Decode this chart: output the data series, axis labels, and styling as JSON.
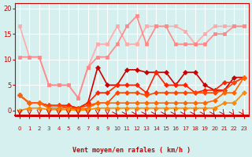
{
  "xlabel": "Vent moyen/en rafales ( km/h )",
  "bg_color": "#d6f0f0",
  "grid_color": "#ffffff",
  "x_ticks": [
    0,
    1,
    2,
    3,
    4,
    5,
    6,
    7,
    8,
    9,
    10,
    11,
    12,
    13,
    14,
    15,
    16,
    17,
    18,
    19,
    20,
    21,
    22,
    23
  ],
  "ylim": [
    -1,
    21
  ],
  "yticks": [
    0,
    5,
    10,
    15,
    20
  ],
  "series": [
    {
      "x": [
        0,
        1,
        2,
        3,
        4,
        5,
        6,
        7,
        8,
        9,
        10,
        11,
        12,
        13,
        14,
        15,
        16,
        17,
        18,
        19,
        20,
        21,
        22,
        23
      ],
      "y": [
        16.5,
        10.5,
        10.5,
        5.0,
        5.0,
        5.0,
        2.5,
        8.5,
        13.0,
        13.0,
        16.5,
        13.0,
        13.0,
        16.5,
        16.5,
        16.5,
        16.5,
        15.5,
        13.0,
        15.0,
        16.5,
        16.5,
        16.5,
        16.5
      ],
      "color": "#ffaaaa",
      "lw": 1.2,
      "marker": "s",
      "ms": 3
    },
    {
      "x": [
        0,
        1,
        2,
        3,
        4,
        5,
        6,
        7,
        8,
        9,
        10,
        11,
        12,
        13,
        14,
        15,
        16,
        17,
        18,
        19,
        20,
        21,
        22,
        23
      ],
      "y": [
        10.5,
        10.5,
        10.5,
        5.0,
        5.0,
        5.0,
        2.5,
        8.5,
        10.5,
        10.5,
        13.0,
        16.5,
        18.5,
        13.0,
        16.5,
        16.5,
        13.0,
        13.0,
        13.0,
        13.0,
        15.0,
        15.0,
        16.5,
        16.5
      ],
      "color": "#ff8888",
      "lw": 1.2,
      "marker": "s",
      "ms": 3
    },
    {
      "x": [
        0,
        1,
        2,
        3,
        4,
        5,
        6,
        7,
        8,
        9,
        10,
        11,
        12,
        13,
        14,
        15,
        16,
        17,
        18,
        19,
        20,
        21,
        22,
        23
      ],
      "y": [
        3.0,
        1.5,
        1.5,
        1.0,
        1.0,
        1.0,
        0.5,
        1.5,
        8.5,
        5.0,
        5.0,
        8.0,
        8.0,
        7.5,
        7.5,
        7.5,
        5.0,
        7.5,
        7.5,
        5.0,
        4.0,
        4.0,
        6.5,
        6.5
      ],
      "color": "#cc0000",
      "lw": 1.2,
      "marker": "D",
      "ms": 3
    },
    {
      "x": [
        0,
        1,
        2,
        3,
        4,
        5,
        6,
        7,
        8,
        9,
        10,
        11,
        12,
        13,
        14,
        15,
        16,
        17,
        18,
        19,
        20,
        21,
        22,
        23
      ],
      "y": [
        3.0,
        1.5,
        1.5,
        1.0,
        1.0,
        1.0,
        0.5,
        1.5,
        3.5,
        3.5,
        5.0,
        5.0,
        5.0,
        3.5,
        7.5,
        5.0,
        5.0,
        5.0,
        3.5,
        4.0,
        4.0,
        5.5,
        5.5,
        6.5
      ],
      "color": "#ff2200",
      "lw": 1.2,
      "marker": "D",
      "ms": 3
    },
    {
      "x": [
        0,
        1,
        2,
        3,
        4,
        5,
        6,
        7,
        8,
        9,
        10,
        11,
        12,
        13,
        14,
        15,
        16,
        17,
        18,
        19,
        20,
        21,
        22,
        23
      ],
      "y": [
        3.0,
        1.5,
        1.5,
        1.0,
        1.0,
        0.5,
        0.5,
        1.0,
        1.5,
        1.5,
        3.5,
        3.5,
        3.5,
        3.0,
        3.5,
        3.5,
        3.5,
        3.5,
        3.5,
        3.5,
        3.5,
        4.0,
        5.5,
        6.5
      ],
      "color": "#ff4400",
      "lw": 1.2,
      "marker": "D",
      "ms": 3
    },
    {
      "x": [
        0,
        1,
        2,
        3,
        4,
        5,
        6,
        7,
        8,
        9,
        10,
        11,
        12,
        13,
        14,
        15,
        16,
        17,
        18,
        19,
        20,
        21,
        22,
        23
      ],
      "y": [
        3.0,
        1.5,
        1.5,
        0.5,
        0.5,
        0.5,
        0.2,
        0.5,
        1.5,
        1.5,
        1.5,
        1.5,
        1.5,
        1.5,
        1.5,
        1.5,
        1.5,
        1.5,
        1.5,
        1.5,
        2.0,
        3.5,
        3.5,
        6.5
      ],
      "color": "#ff6600",
      "lw": 1.2,
      "marker": "D",
      "ms": 3
    },
    {
      "x": [
        0,
        1,
        2,
        3,
        4,
        5,
        6,
        7,
        8,
        9,
        10,
        11,
        12,
        13,
        14,
        15,
        16,
        17,
        18,
        19,
        20,
        21,
        22,
        23
      ],
      "y": [
        0,
        0.5,
        0.5,
        0.2,
        0.2,
        0.2,
        0.0,
        0.2,
        0.5,
        0.5,
        0.5,
        0.5,
        0.5,
        0.5,
        0.5,
        0.5,
        0.5,
        0.5,
        0.5,
        0.5,
        0.5,
        1.5,
        1.5,
        3.5
      ],
      "color": "#ff8800",
      "lw": 1.2,
      "marker": "D",
      "ms": 3
    }
  ],
  "arrow_markers_x": [
    0,
    1,
    2,
    3,
    4,
    5,
    6,
    7,
    8,
    9,
    10,
    11,
    12,
    13,
    14,
    15,
    16,
    17,
    18,
    19,
    20,
    21,
    22,
    23
  ]
}
